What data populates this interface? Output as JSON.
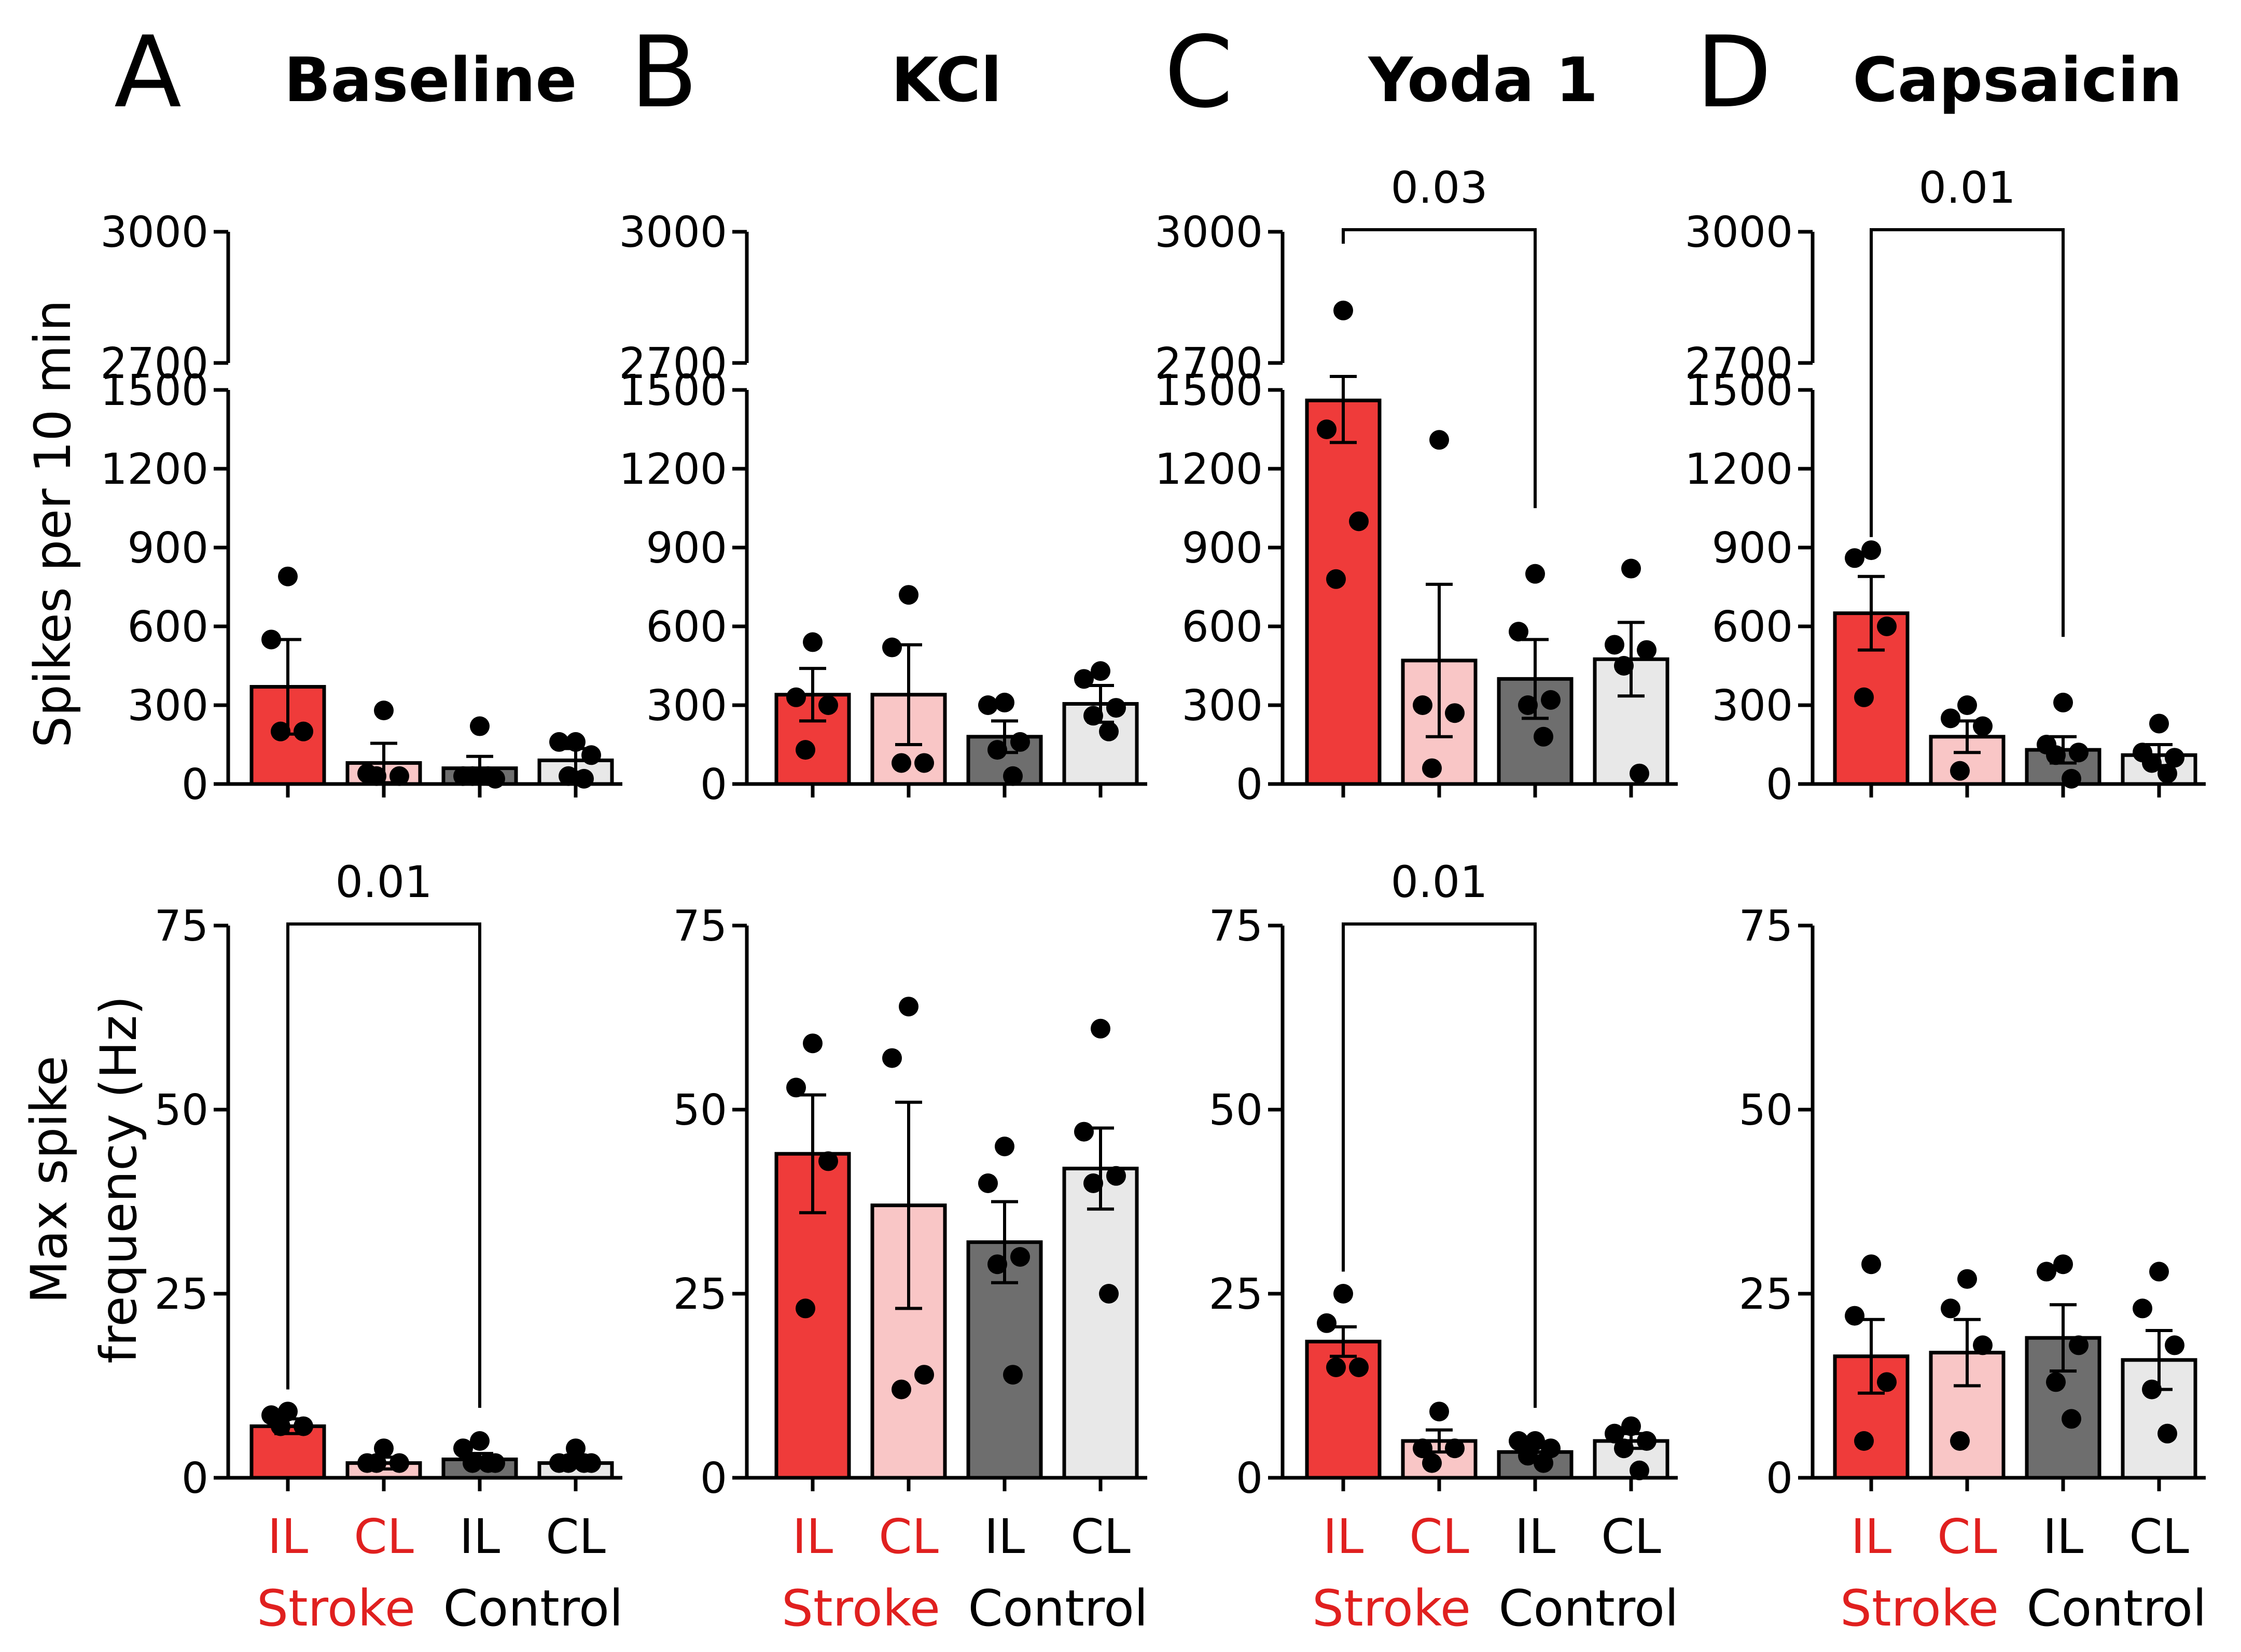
{
  "colors": {
    "stroke_IL": "#EF3B3A",
    "stroke_CL": "#F9C6C6",
    "control_IL": "#6E6E6E",
    "control_CL": "#E8E8E8",
    "stroke_text": "#E0201F",
    "control_text": "#000000"
  },
  "figure": {
    "ylabel_top": "Spikes per 10 min",
    "ylabel_bottom_line1": "Max spike",
    "ylabel_bottom_line2": "frequency (Hz)",
    "group_labels": [
      "IL",
      "CL",
      "IL",
      "CL"
    ],
    "group_names": [
      "Stroke",
      "Control"
    ]
  },
  "chart_data": [
    {
      "panel": "A",
      "row": "top",
      "title": "Baseline",
      "type": "bar",
      "ylabel": "Spikes per 10 min",
      "categories": [
        "Stroke IL",
        "Stroke CL",
        "Control IL",
        "Control CL"
      ],
      "values": [
        370,
        80,
        60,
        90
      ],
      "sem": [
        180,
        75,
        45,
        45
      ],
      "points": [
        [
          790,
          550,
          200,
          200
        ],
        [
          280,
          40,
          30,
          30
        ],
        [
          220,
          30,
          20,
          30,
          30
        ],
        [
          160,
          160,
          110,
          30,
          20
        ]
      ],
      "yticks": [
        0,
        300,
        600,
        900,
        1200,
        1500,
        2700,
        3000
      ],
      "y_break": [
        1500,
        2700
      ],
      "significance": null
    },
    {
      "panel": "B",
      "row": "top",
      "title": "KCl",
      "type": "bar",
      "ylabel": "Spikes per 10 min",
      "categories": [
        "Stroke IL",
        "Stroke CL",
        "Control IL",
        "Control CL"
      ],
      "values": [
        340,
        340,
        180,
        305
      ],
      "sem": [
        100,
        190,
        60,
        70
      ],
      "points": [
        [
          540,
          330,
          300,
          130
        ],
        [
          720,
          520,
          80,
          80
        ],
        [
          310,
          300,
          160,
          130,
          30
        ],
        [
          430,
          400,
          290,
          260,
          200
        ]
      ],
      "yticks": [
        0,
        300,
        600,
        900,
        1200,
        1500,
        2700,
        3000
      ],
      "y_break": [
        1500,
        2700
      ],
      "significance": null
    },
    {
      "panel": "C",
      "row": "top",
      "title": "Yoda 1",
      "type": "bar",
      "ylabel": "Spikes per 10 min",
      "categories": [
        "Stroke IL",
        "Stroke CL",
        "Control IL",
        "Control CL"
      ],
      "values": [
        1460,
        470,
        400,
        475
      ],
      "sem": [
        160,
        290,
        150,
        140
      ],
      "points": [
        [
          2820,
          1350,
          1000,
          780
        ],
        [
          1310,
          300,
          270,
          60
        ],
        [
          800,
          580,
          320,
          300,
          180
        ],
        [
          820,
          530,
          510,
          450,
          40
        ]
      ],
      "yticks": [
        0,
        300,
        600,
        900,
        1200,
        1500,
        2700,
        3000
      ],
      "y_break": [
        1500,
        2700
      ],
      "significance": {
        "from": 0,
        "to": 2,
        "label": "0.03"
      }
    },
    {
      "panel": "D",
      "row": "top",
      "title": "Capsaicin",
      "type": "bar",
      "ylabel": "Spikes per 10 min",
      "categories": [
        "Stroke IL",
        "Stroke CL",
        "Control IL",
        "Control CL"
      ],
      "values": [
        650,
        180,
        130,
        110
      ],
      "sem": [
        140,
        60,
        50,
        40
      ],
      "points": [
        [
          890,
          860,
          600,
          330
        ],
        [
          300,
          250,
          220,
          50
        ],
        [
          310,
          150,
          120,
          110,
          20
        ],
        [
          230,
          120,
          100,
          80,
          40
        ]
      ],
      "yticks": [
        0,
        300,
        600,
        900,
        1200,
        1500,
        2700,
        3000
      ],
      "y_break": [
        1500,
        2700
      ],
      "significance": {
        "from": 0,
        "to": 2,
        "label": "0.01"
      }
    },
    {
      "panel": "A",
      "row": "bottom",
      "title": "Baseline",
      "type": "bar",
      "ylabel": "Max spike frequency (Hz)",
      "categories": [
        "Stroke IL",
        "Stroke CL",
        "Control IL",
        "Control CL"
      ],
      "values": [
        7,
        2,
        2.5,
        2
      ],
      "sem": [
        1,
        0.8,
        0.8,
        0.5
      ],
      "points": [
        [
          9,
          8.5,
          7,
          7
        ],
        [
          4,
          2,
          2,
          2
        ],
        [
          5,
          4,
          2,
          2,
          2
        ],
        [
          4,
          2,
          2,
          2,
          2
        ]
      ],
      "yticks": [
        0,
        25,
        50,
        75
      ],
      "significance": {
        "from": 0,
        "to": 2,
        "label": "0.01"
      }
    },
    {
      "panel": "B",
      "row": "bottom",
      "title": "KCl",
      "type": "bar",
      "ylabel": "Max spike frequency (Hz)",
      "categories": [
        "Stroke IL",
        "Stroke CL",
        "Control IL",
        "Control CL"
      ],
      "values": [
        44,
        37,
        32,
        42
      ],
      "sem": [
        8,
        14,
        5.5,
        5.5
      ],
      "points": [
        [
          59,
          53,
          43,
          23
        ],
        [
          64,
          57,
          14,
          12
        ],
        [
          45,
          40,
          30,
          29,
          14
        ],
        [
          61,
          47,
          41,
          40,
          25
        ]
      ],
      "yticks": [
        0,
        25,
        50,
        75
      ],
      "significance": null
    },
    {
      "panel": "C",
      "row": "bottom",
      "title": "Yoda 1",
      "type": "bar",
      "ylabel": "Max spike frequency (Hz)",
      "categories": [
        "Stroke IL",
        "Stroke CL",
        "Control IL",
        "Control CL"
      ],
      "values": [
        18.5,
        5,
        3.5,
        5
      ],
      "sem": [
        2,
        1.5,
        1,
        1
      ],
      "points": [
        [
          25,
          21,
          15,
          15
        ],
        [
          9,
          4,
          4,
          2
        ],
        [
          5,
          5,
          4,
          3,
          2
        ],
        [
          7,
          6,
          5,
          4,
          1
        ]
      ],
      "yticks": [
        0,
        25,
        50,
        75
      ],
      "significance": {
        "from": 0,
        "to": 2,
        "label": "0.01"
      }
    },
    {
      "panel": "D",
      "row": "bottom",
      "title": "Capsaicin",
      "type": "bar",
      "ylabel": "Max spike frequency (Hz)",
      "categories": [
        "Stroke IL",
        "Stroke CL",
        "Control IL",
        "Control CL"
      ],
      "values": [
        16.5,
        17,
        19,
        16
      ],
      "sem": [
        5,
        4.5,
        4.5,
        4
      ],
      "points": [
        [
          29,
          22,
          13,
          5
        ],
        [
          27,
          23,
          18,
          5
        ],
        [
          29,
          28,
          18,
          13,
          8
        ],
        [
          28,
          23,
          18,
          12,
          6
        ]
      ],
      "yticks": [
        0,
        25,
        50,
        75
      ],
      "significance": null
    }
  ]
}
